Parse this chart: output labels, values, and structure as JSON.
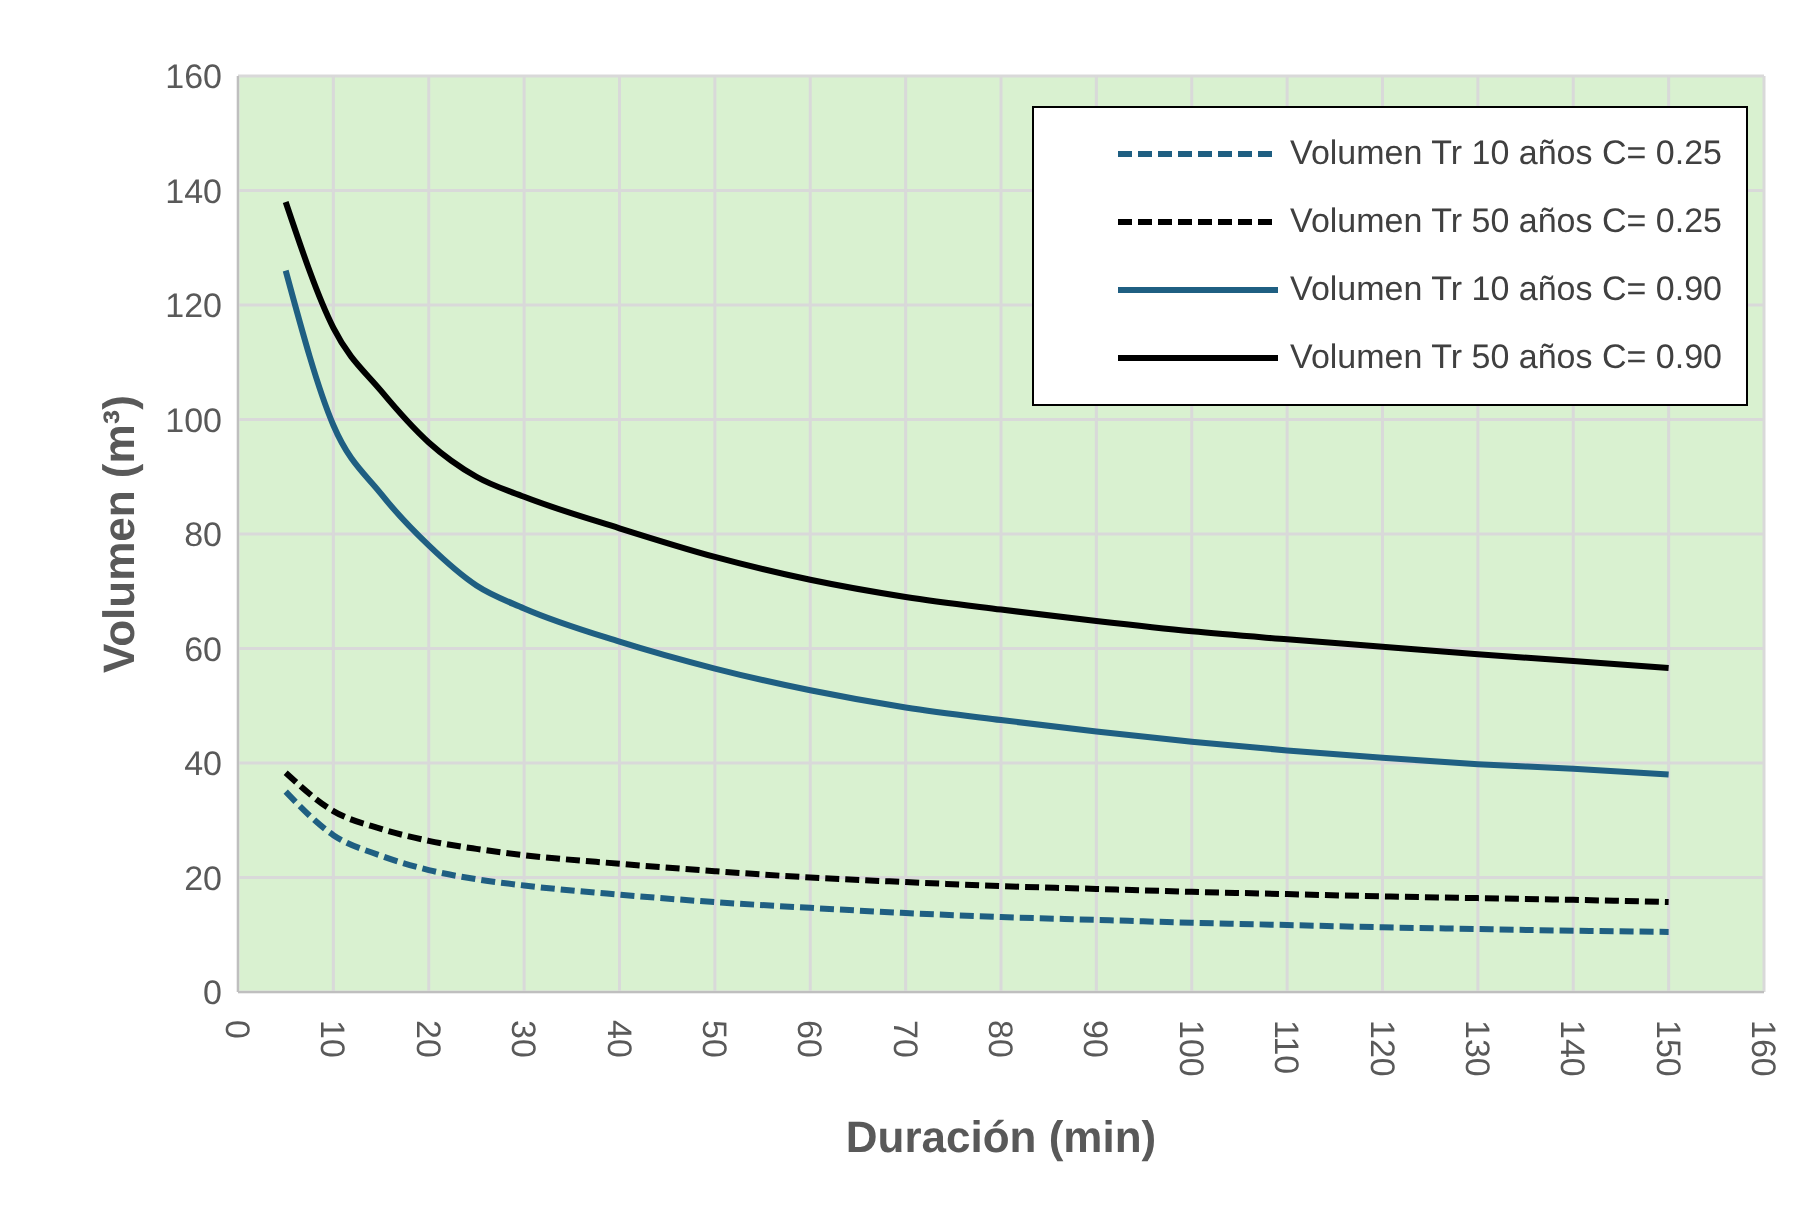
{
  "chart_data": {
    "type": "line",
    "xlabel": "Duración (min)",
    "ylabel": "Volumen (m³)",
    "x": [
      5,
      10,
      15,
      20,
      25,
      30,
      40,
      50,
      60,
      70,
      80,
      90,
      100,
      110,
      120,
      130,
      140,
      150
    ],
    "series": [
      {
        "name": "Volumen Tr 10 años C= 0.25",
        "color": "#1f5f82",
        "line_style": "dashed",
        "values": [
          35,
          27.4,
          23.8,
          21.3,
          19.7,
          18.6,
          17,
          15.7,
          14.7,
          13.8,
          13.1,
          12.6,
          12.1,
          11.7,
          11.3,
          11,
          10.7,
          10.5
        ]
      },
      {
        "name": "Volumen Tr 50 años C= 0.25",
        "color": "#000000",
        "line_style": "dashed",
        "values": [
          38.3,
          31.6,
          28.5,
          26.4,
          25,
          23.9,
          22.4,
          21.1,
          20,
          19.2,
          18.5,
          18,
          17.5,
          17.1,
          16.7,
          16.4,
          16.1,
          15.7
        ]
      },
      {
        "name": "Volumen Tr 10 años C= 0.90",
        "color": "#1f5f82",
        "line_style": "solid",
        "values": [
          126,
          99,
          87,
          78,
          71,
          67,
          61.2,
          56.5,
          52.7,
          49.7,
          47.5,
          45.5,
          43.7,
          42.2,
          40.9,
          39.8,
          39,
          38
        ]
      },
      {
        "name": "Volumen Tr 50 años C= 0.90",
        "color": "#000000",
        "line_style": "solid",
        "values": [
          138,
          116,
          105,
          96,
          90,
          86.5,
          81,
          76,
          72,
          69,
          66.8,
          64.8,
          63,
          61.6,
          60.3,
          59,
          57.8,
          56.6
        ]
      }
    ],
    "xlim": [
      0,
      160
    ],
    "xticks": [
      0,
      10,
      20,
      30,
      40,
      50,
      60,
      70,
      80,
      90,
      100,
      110,
      120,
      130,
      140,
      150,
      160
    ],
    "ylim": [
      0,
      160
    ],
    "yticks": [
      0,
      20,
      40,
      60,
      80,
      100,
      120,
      140,
      160
    ],
    "grid": true,
    "legend": "top right",
    "marker": "none"
  }
}
